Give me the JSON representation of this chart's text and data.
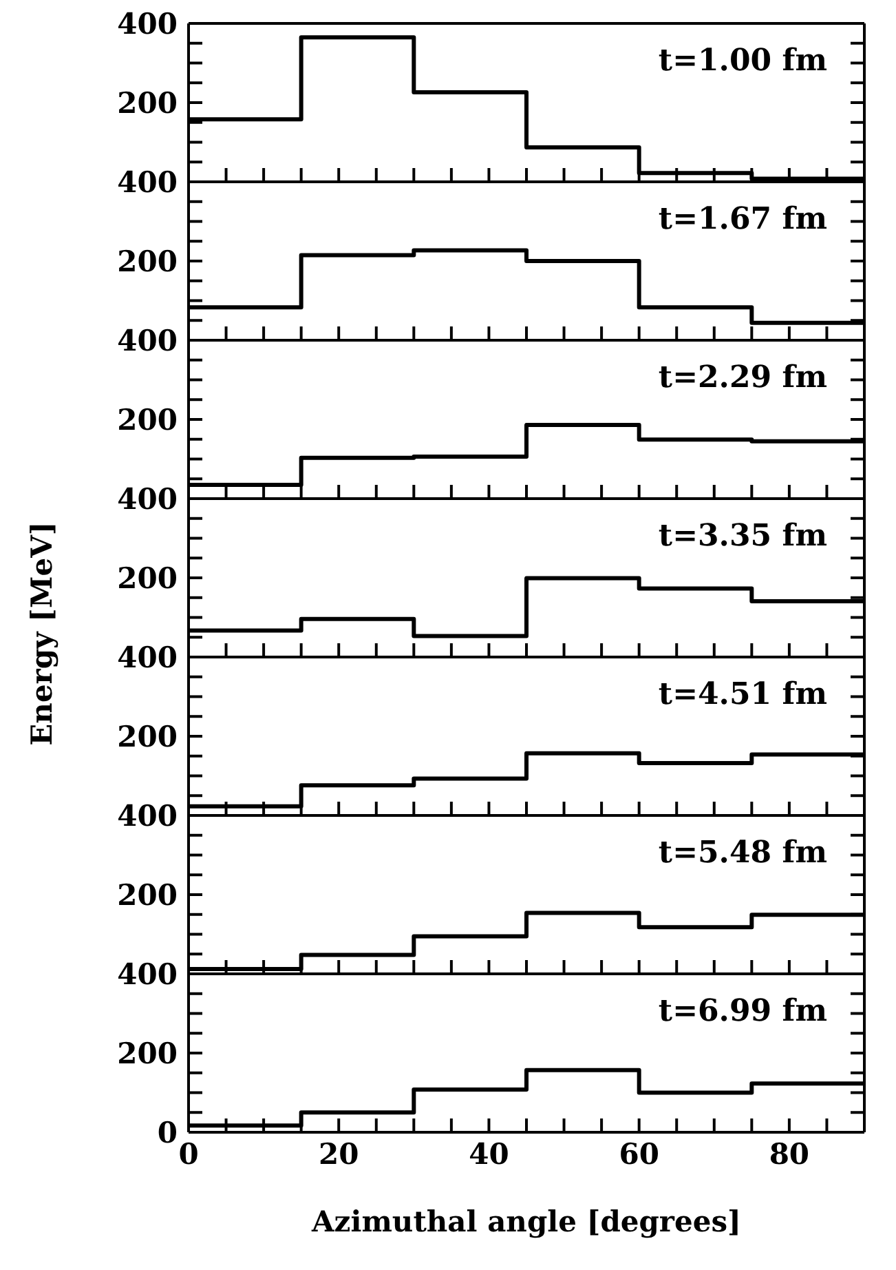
{
  "chart_data": [
    {
      "type": "histogram",
      "color": "#000000",
      "bins": [
        0,
        15,
        30,
        45,
        60,
        75,
        90
      ],
      "values": [
        158,
        365,
        226,
        87,
        22,
        8
      ],
      "annotations": [
        "t=1.00 fm"
      ],
      "xlim": [
        0,
        90
      ],
      "ylim": [
        0,
        400
      ],
      "xticks": [
        0,
        {
          "value": 5,
          "label": null
        },
        {
          "value": 10,
          "label": null
        },
        {
          "value": 15,
          "label": null
        },
        {
          "value": 20,
          "label": null
        },
        {
          "value": 25,
          "label": null
        },
        {
          "value": 30,
          "label": null
        },
        {
          "value": 35,
          "label": null
        },
        {
          "value": 40,
          "label": null
        },
        {
          "value": 45,
          "label": null
        },
        {
          "value": 50,
          "label": null
        },
        {
          "value": 55,
          "label": null
        },
        {
          "value": 60,
          "label": null
        },
        {
          "value": 65,
          "label": null
        },
        {
          "value": 70,
          "label": null
        },
        {
          "value": 75,
          "label": null
        },
        {
          "value": 80,
          "label": null
        },
        {
          "value": 85,
          "label": null
        },
        {
          "value": 90,
          "label": null
        }
      ],
      "yticks": [
        {
          "value": 0,
          "label": null
        },
        {
          "value": 50,
          "label": null
        },
        {
          "value": 100,
          "label": null
        },
        {
          "value": 150,
          "label": null
        },
        200,
        {
          "value": 250,
          "label": null
        },
        {
          "value": 300,
          "label": null
        },
        {
          "value": 350,
          "label": null
        },
        400
      ],
      "tick_labels": "y"
    },
    {
      "type": "histogram",
      "color": "#000000",
      "bins": [
        0,
        15,
        30,
        45,
        60,
        75,
        90
      ],
      "values": [
        83,
        215,
        227,
        200,
        83,
        44
      ],
      "annotations": [
        "t=1.67 fm"
      ],
      "xlim": [
        0,
        90
      ],
      "ylim": [
        0,
        400
      ],
      "xticks": [
        {
          "value": 0,
          "label": null
        },
        {
          "value": 5,
          "label": null
        },
        {
          "value": 10,
          "label": null
        },
        {
          "value": 15,
          "label": null
        },
        {
          "value": 20,
          "label": null
        },
        {
          "value": 25,
          "label": null
        },
        {
          "value": 30,
          "label": null
        },
        {
          "value": 35,
          "label": null
        },
        {
          "value": 40,
          "label": null
        },
        {
          "value": 45,
          "label": null
        },
        {
          "value": 50,
          "label": null
        },
        {
          "value": 55,
          "label": null
        },
        {
          "value": 60,
          "label": null
        },
        {
          "value": 65,
          "label": null
        },
        {
          "value": 70,
          "label": null
        },
        {
          "value": 75,
          "label": null
        },
        {
          "value": 80,
          "label": null
        },
        {
          "value": 85,
          "label": null
        },
        {
          "value": 90,
          "label": null
        }
      ],
      "yticks": [
        {
          "value": 0,
          "label": null
        },
        {
          "value": 50,
          "label": null
        },
        {
          "value": 100,
          "label": null
        },
        {
          "value": 150,
          "label": null
        },
        200,
        {
          "value": 250,
          "label": null
        },
        {
          "value": 300,
          "label": null
        },
        {
          "value": 350,
          "label": null
        },
        400
      ],
      "tick_labels": "y"
    },
    {
      "type": "histogram",
      "color": "#000000",
      "bins": [
        0,
        15,
        30,
        45,
        60,
        75,
        90
      ],
      "values": [
        35,
        103,
        106,
        186,
        149,
        145
      ],
      "annotations": [
        "t=2.29 fm"
      ],
      "xlim": [
        0,
        90
      ],
      "ylim": [
        0,
        400
      ],
      "xticks": [
        {
          "value": 0,
          "label": null
        },
        {
          "value": 5,
          "label": null
        },
        {
          "value": 10,
          "label": null
        },
        {
          "value": 15,
          "label": null
        },
        {
          "value": 20,
          "label": null
        },
        {
          "value": 25,
          "label": null
        },
        {
          "value": 30,
          "label": null
        },
        {
          "value": 35,
          "label": null
        },
        {
          "value": 40,
          "label": null
        },
        {
          "value": 45,
          "label": null
        },
        {
          "value": 50,
          "label": null
        },
        {
          "value": 55,
          "label": null
        },
        {
          "value": 60,
          "label": null
        },
        {
          "value": 65,
          "label": null
        },
        {
          "value": 70,
          "label": null
        },
        {
          "value": 75,
          "label": null
        },
        {
          "value": 80,
          "label": null
        },
        {
          "value": 85,
          "label": null
        },
        {
          "value": 90,
          "label": null
        }
      ],
      "yticks": [
        {
          "value": 0,
          "label": null
        },
        {
          "value": 50,
          "label": null
        },
        {
          "value": 100,
          "label": null
        },
        {
          "value": 150,
          "label": null
        },
        200,
        {
          "value": 250,
          "label": null
        },
        {
          "value": 300,
          "label": null
        },
        {
          "value": 350,
          "label": null
        },
        400
      ],
      "tick_labels": "y"
    },
    {
      "type": "histogram",
      "color": "#000000",
      "bins": [
        0,
        15,
        30,
        45,
        60,
        75,
        90
      ],
      "values": [
        67,
        96,
        53,
        199,
        173,
        141
      ],
      "annotations": [
        "t=3.35 fm"
      ],
      "ylabel": "Energy [MeV]",
      "xlim": [
        0,
        90
      ],
      "ylim": [
        0,
        400
      ],
      "xticks": [
        {
          "value": 0,
          "label": null
        },
        {
          "value": 5,
          "label": null
        },
        {
          "value": 10,
          "label": null
        },
        {
          "value": 15,
          "label": null
        },
        {
          "value": 20,
          "label": null
        },
        {
          "value": 25,
          "label": null
        },
        {
          "value": 30,
          "label": null
        },
        {
          "value": 35,
          "label": null
        },
        {
          "value": 40,
          "label": null
        },
        {
          "value": 45,
          "label": null
        },
        {
          "value": 50,
          "label": null
        },
        {
          "value": 55,
          "label": null
        },
        {
          "value": 60,
          "label": null
        },
        {
          "value": 65,
          "label": null
        },
        {
          "value": 70,
          "label": null
        },
        {
          "value": 75,
          "label": null
        },
        {
          "value": 80,
          "label": null
        },
        {
          "value": 85,
          "label": null
        },
        {
          "value": 90,
          "label": null
        }
      ],
      "yticks": [
        {
          "value": 0,
          "label": null
        },
        {
          "value": 50,
          "label": null
        },
        {
          "value": 100,
          "label": null
        },
        {
          "value": 150,
          "label": null
        },
        200,
        {
          "value": 250,
          "label": null
        },
        {
          "value": 300,
          "label": null
        },
        {
          "value": 350,
          "label": null
        },
        400
      ],
      "tick_labels": "y"
    },
    {
      "type": "histogram",
      "color": "#000000",
      "bins": [
        0,
        15,
        30,
        45,
        60,
        75,
        90
      ],
      "values": [
        23,
        76,
        93,
        157,
        132,
        154
      ],
      "annotations": [
        "t=4.51 fm"
      ],
      "xlim": [
        0,
        90
      ],
      "ylim": [
        0,
        400
      ],
      "xticks": [
        {
          "value": 0,
          "label": null
        },
        {
          "value": 5,
          "label": null
        },
        {
          "value": 10,
          "label": null
        },
        {
          "value": 15,
          "label": null
        },
        {
          "value": 20,
          "label": null
        },
        {
          "value": 25,
          "label": null
        },
        {
          "value": 30,
          "label": null
        },
        {
          "value": 35,
          "label": null
        },
        {
          "value": 40,
          "label": null
        },
        {
          "value": 45,
          "label": null
        },
        {
          "value": 50,
          "label": null
        },
        {
          "value": 55,
          "label": null
        },
        {
          "value": 60,
          "label": null
        },
        {
          "value": 65,
          "label": null
        },
        {
          "value": 70,
          "label": null
        },
        {
          "value": 75,
          "label": null
        },
        {
          "value": 80,
          "label": null
        },
        {
          "value": 85,
          "label": null
        },
        {
          "value": 90,
          "label": null
        }
      ],
      "yticks": [
        {
          "value": 0,
          "label": null
        },
        {
          "value": 50,
          "label": null
        },
        {
          "value": 100,
          "label": null
        },
        {
          "value": 150,
          "label": null
        },
        200,
        {
          "value": 250,
          "label": null
        },
        {
          "value": 300,
          "label": null
        },
        {
          "value": 350,
          "label": null
        },
        400
      ],
      "tick_labels": "y"
    },
    {
      "type": "histogram",
      "color": "#000000",
      "bins": [
        0,
        15,
        30,
        45,
        60,
        75,
        90
      ],
      "values": [
        12,
        48,
        95,
        154,
        118,
        149
      ],
      "annotations": [
        "t=5.48 fm"
      ],
      "xlim": [
        0,
        90
      ],
      "ylim": [
        0,
        400
      ],
      "xticks": [
        {
          "value": 0,
          "label": null
        },
        {
          "value": 5,
          "label": null
        },
        {
          "value": 10,
          "label": null
        },
        {
          "value": 15,
          "label": null
        },
        {
          "value": 20,
          "label": null
        },
        {
          "value": 25,
          "label": null
        },
        {
          "value": 30,
          "label": null
        },
        {
          "value": 35,
          "label": null
        },
        {
          "value": 40,
          "label": null
        },
        {
          "value": 45,
          "label": null
        },
        {
          "value": 50,
          "label": null
        },
        {
          "value": 55,
          "label": null
        },
        {
          "value": 60,
          "label": null
        },
        {
          "value": 65,
          "label": null
        },
        {
          "value": 70,
          "label": null
        },
        {
          "value": 75,
          "label": null
        },
        {
          "value": 80,
          "label": null
        },
        {
          "value": 85,
          "label": null
        },
        {
          "value": 90,
          "label": null
        }
      ],
      "yticks": [
        {
          "value": 0,
          "label": null
        },
        {
          "value": 50,
          "label": null
        },
        {
          "value": 100,
          "label": null
        },
        {
          "value": 150,
          "label": null
        },
        200,
        {
          "value": 250,
          "label": null
        },
        {
          "value": 300,
          "label": null
        },
        {
          "value": 350,
          "label": null
        },
        400
      ],
      "tick_labels": "y"
    },
    {
      "type": "histogram",
      "color": "#000000",
      "bins": [
        0,
        15,
        30,
        45,
        60,
        75,
        90
      ],
      "values": [
        17,
        50,
        108,
        157,
        100,
        123
      ],
      "annotations": [
        "t=6.99 fm"
      ],
      "xlabel": "Azimuthal angle [degrees]",
      "xlim": [
        0,
        90
      ],
      "ylim": [
        0,
        400
      ],
      "xticks": [
        0,
        {
          "value": 5,
          "label": null
        },
        {
          "value": 10,
          "label": null
        },
        {
          "value": 15,
          "label": null
        },
        20,
        {
          "value": 25,
          "label": null
        },
        {
          "value": 30,
          "label": null
        },
        {
          "value": 35,
          "label": null
        },
        40,
        {
          "value": 45,
          "label": null
        },
        {
          "value": 50,
          "label": null
        },
        {
          "value": 55,
          "label": null
        },
        60,
        {
          "value": 65,
          "label": null
        },
        {
          "value": 70,
          "label": null
        },
        {
          "value": 75,
          "label": null
        },
        80,
        {
          "value": 85,
          "label": null
        },
        {
          "value": 90,
          "label": null
        }
      ],
      "yticks": [
        0,
        {
          "value": 50,
          "label": null
        },
        {
          "value": 100,
          "label": null
        },
        {
          "value": 150,
          "label": null
        },
        200,
        {
          "value": 250,
          "label": null
        },
        {
          "value": 300,
          "label": null
        },
        {
          "value": 350,
          "label": null
        },
        400
      ]
    }
  ]
}
